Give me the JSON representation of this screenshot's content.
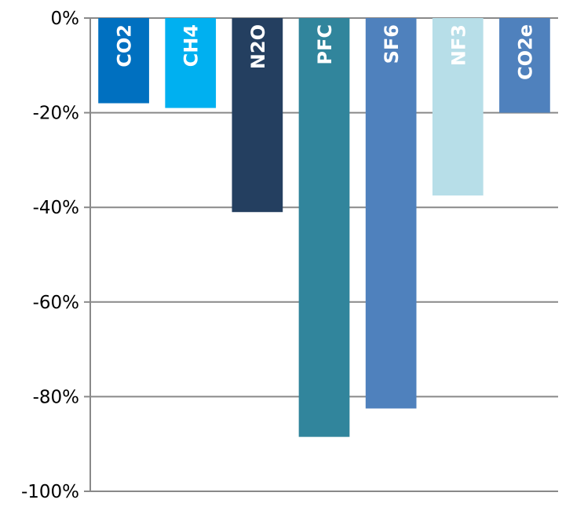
{
  "chart_data": {
    "type": "bar",
    "title": "",
    "xlabel": "",
    "ylabel": "",
    "categories": [
      "CO2",
      "CH4",
      "N2O",
      "PFC",
      "SF6",
      "NF3",
      "CO2e"
    ],
    "values": [
      -18,
      -19,
      -41,
      -88.5,
      -82.5,
      -37.5,
      -20
    ],
    "colors": [
      "#0070C0",
      "#00B0F0",
      "#243F60",
      "#31859C",
      "#4F81BD",
      "#B7DEE8",
      "#4F81BD"
    ],
    "ylim": [
      -100,
      0
    ],
    "yticks": [
      0,
      -20,
      -40,
      -60,
      -80,
      -100
    ],
    "ytick_labels": [
      "0%",
      "-20%",
      "-40%",
      "-60%",
      "-80%",
      "-100%"
    ],
    "grid": true,
    "legend": false,
    "bar_labels": [
      "CO2",
      "CH4",
      "N2O",
      "PFC",
      "SF6",
      "NF3",
      "CO2e"
    ]
  }
}
